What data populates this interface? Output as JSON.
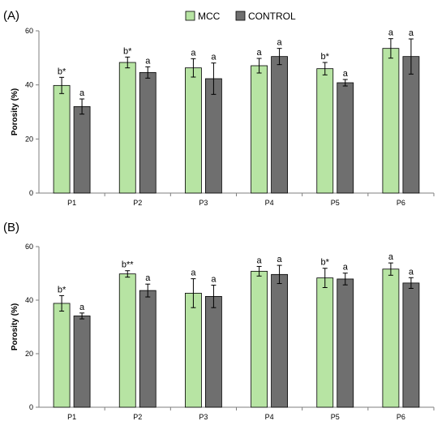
{
  "legend": [
    {
      "name": "MCC",
      "color": "#b7e4a3"
    },
    {
      "name": "CONTROL",
      "color": "#6f6f6f"
    }
  ],
  "chart_data": [
    {
      "type": "bar",
      "panel": "(A)",
      "ylabel": "Porosity (%)",
      "ylim": [
        0,
        60
      ],
      "yticks": [
        0,
        20,
        40,
        60
      ],
      "categories": [
        "P1",
        "P2",
        "P3",
        "P4",
        "P5",
        "P6"
      ],
      "series": [
        {
          "name": "MCC",
          "color": "#b7e4a3",
          "values": [
            39.8,
            48.3,
            46.3,
            47.1,
            46.0,
            53.5
          ],
          "errors": [
            3.0,
            2.0,
            3.4,
            2.7,
            2.3,
            3.6
          ],
          "labels": [
            "b*",
            "b*",
            "a",
            "a",
            "b*",
            "a"
          ]
        },
        {
          "name": "CONTROL",
          "color": "#6f6f6f",
          "values": [
            32.0,
            44.6,
            42.3,
            50.5,
            40.8,
            50.5
          ],
          "errors": [
            2.8,
            2.1,
            5.8,
            3.0,
            1.2,
            6.5
          ],
          "labels": [
            "a",
            "a",
            "a",
            "a",
            "a",
            "a"
          ]
        }
      ]
    },
    {
      "type": "bar",
      "panel": "(B)",
      "ylabel": "Porosity (%)",
      "ylim": [
        0,
        60
      ],
      "yticks": [
        0,
        20,
        40,
        60
      ],
      "categories": [
        "P1",
        "P2",
        "P3",
        "P4",
        "P5",
        "P6"
      ],
      "series": [
        {
          "name": "MCC",
          "color": "#b7e4a3",
          "values": [
            38.8,
            49.8,
            42.6,
            50.8,
            48.3,
            51.6
          ],
          "errors": [
            2.9,
            1.2,
            5.4,
            1.8,
            3.6,
            2.3
          ],
          "labels": [
            "b*",
            "b**",
            "a",
            "a",
            "b*",
            "a"
          ]
        },
        {
          "name": "CONTROL",
          "color": "#6f6f6f",
          "values": [
            34.1,
            43.6,
            41.4,
            49.6,
            47.9,
            46.4
          ],
          "errors": [
            1.1,
            2.4,
            4.2,
            3.4,
            2.2,
            2.0
          ],
          "labels": [
            "a",
            "a",
            "a",
            "a",
            "a",
            "a"
          ]
        }
      ]
    }
  ]
}
